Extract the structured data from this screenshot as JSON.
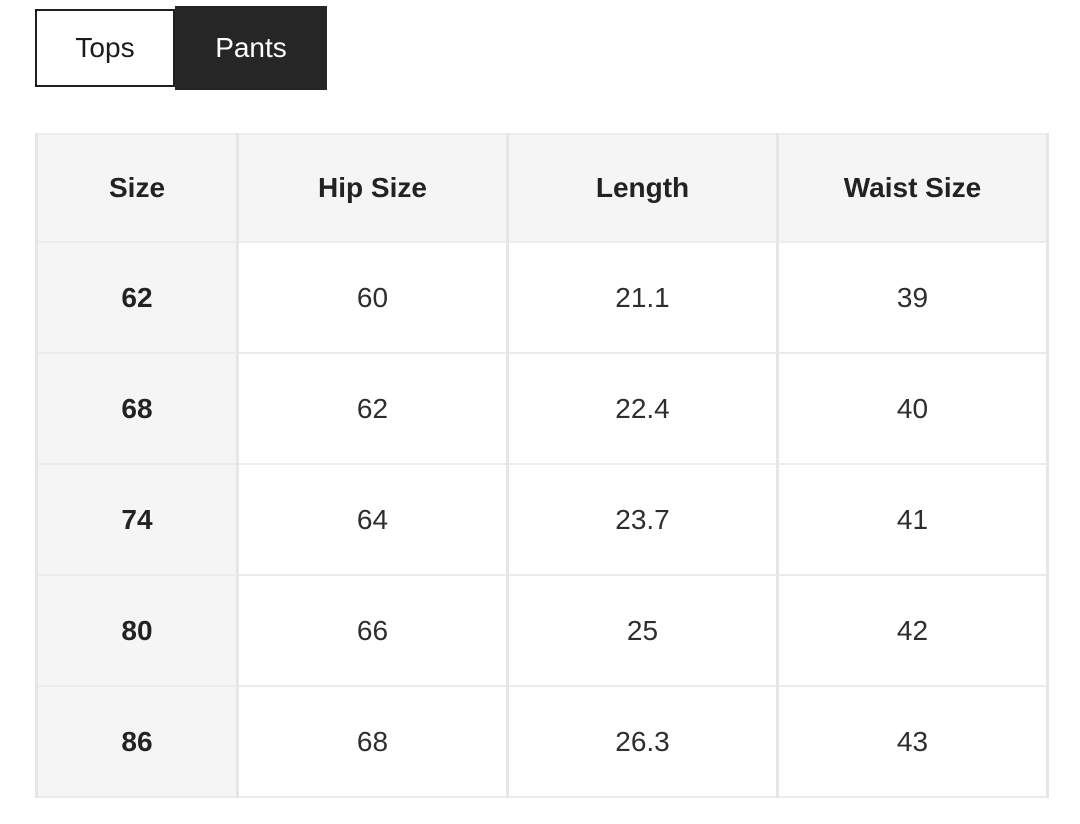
{
  "tabs": [
    {
      "label": "Tops",
      "active": false
    },
    {
      "label": "Pants",
      "active": true
    }
  ],
  "table": {
    "columns": [
      "Size",
      "Hip Size",
      "Length",
      "Waist Size"
    ],
    "rows": [
      [
        "62",
        "60",
        "21.1",
        "39"
      ],
      [
        "68",
        "62",
        "22.4",
        "40"
      ],
      [
        "74",
        "64",
        "23.7",
        "41"
      ],
      [
        "80",
        "66",
        "25",
        "42"
      ],
      [
        "86",
        "68",
        "26.3",
        "43"
      ]
    ]
  },
  "colors": {
    "active_tab_bg": "#262626",
    "active_tab_text": "#ffffff",
    "inactive_tab_border": "#1f1f1f",
    "header_bg": "#f5f5f5",
    "grid_border": "#e6e6e6",
    "cell_text": "#2e2e2e"
  }
}
